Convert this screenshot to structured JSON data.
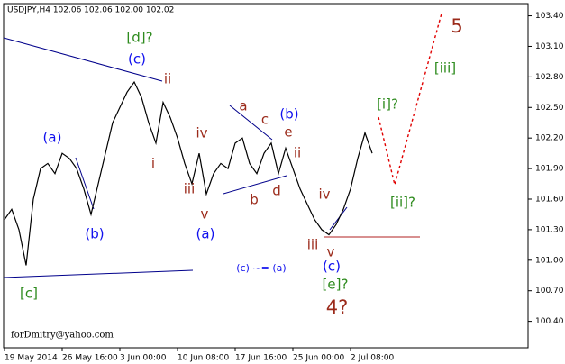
{
  "chart_data": {
    "type": "line",
    "title": "USDJPY,H4  102.06 102.06 102.00 102.02",
    "watermark": "forDmitry@yahoo.com",
    "categories": [
      "19 May 2014",
      null,
      null,
      null,
      null,
      null,
      null,
      null,
      "26 May 16:00",
      null,
      null,
      null,
      null,
      null,
      null,
      null,
      "3 Jun 00:00",
      null,
      null,
      null,
      null,
      null,
      null,
      null,
      "10 Jun 08:00",
      null,
      null,
      null,
      null,
      null,
      null,
      null,
      "17 Jun 16:00",
      null,
      null,
      null,
      null,
      null,
      null,
      null,
      "25 Jun 00:00",
      null,
      null,
      null,
      null,
      null,
      null,
      null,
      "2 Jul 08:00",
      null,
      null,
      null
    ],
    "series": [
      {
        "name": "USDJPY",
        "color": "#000000",
        "values": [
          101.4,
          101.5,
          101.3,
          100.95,
          101.6,
          101.9,
          101.95,
          101.85,
          102.05,
          102.0,
          101.9,
          101.7,
          101.45,
          101.75,
          102.05,
          102.35,
          102.5,
          102.65,
          102.75,
          102.6,
          102.35,
          102.15,
          102.55,
          102.4,
          102.2,
          101.95,
          101.75,
          102.05,
          101.65,
          101.85,
          101.95,
          101.9,
          102.15,
          102.2,
          101.95,
          101.85,
          102.05,
          102.15,
          101.85,
          102.1,
          101.9,
          101.7,
          101.55,
          101.4,
          101.3,
          101.25,
          101.35,
          101.5,
          101.7,
          102.0,
          102.25,
          102.05
        ]
      }
    ],
    "ylim": [
      100.14,
      103.52
    ],
    "yticks": [
      {
        "value": 100.4,
        "label": "100.40"
      },
      {
        "value": 100.7,
        "label": "100.70"
      },
      {
        "value": 101.0,
        "label": "101.00"
      },
      {
        "value": 101.3,
        "label": "101.30"
      },
      {
        "value": 101.6,
        "label": "101.60"
      },
      {
        "value": 101.9,
        "label": "101.90"
      },
      {
        "value": 102.2,
        "label": "102.20"
      },
      {
        "value": 102.5,
        "label": "102.50"
      },
      {
        "value": 102.8,
        "label": "102.80"
      },
      {
        "value": 103.1,
        "label": "103.10"
      },
      {
        "value": 103.4,
        "label": "103.40"
      }
    ],
    "grid": false,
    "annotations": [
      {
        "text": "[d]?",
        "color": "#2e8b1e"
      },
      {
        "text": "(c)",
        "color": "#1010ee"
      },
      {
        "text": "ii",
        "color": "#9b2a1a"
      },
      {
        "text": "i",
        "color": "#9b2a1a"
      },
      {
        "text": "iv",
        "color": "#9b2a1a"
      },
      {
        "text": "iii",
        "color": "#9b2a1a"
      },
      {
        "text": "v",
        "color": "#9b2a1a"
      },
      {
        "text": "(a)",
        "color": "#1010ee"
      },
      {
        "text": "(a)",
        "color": "#1010ee"
      },
      {
        "text": "(b)",
        "color": "#1010ee"
      },
      {
        "text": "[c]",
        "color": "#2e8b1e"
      },
      {
        "text": "a",
        "color": "#9b2a1a"
      },
      {
        "text": "c",
        "color": "#9b2a1a"
      },
      {
        "text": "(b)",
        "color": "#1010ee"
      },
      {
        "text": "e",
        "color": "#9b2a1a"
      },
      {
        "text": "ii",
        "color": "#9b2a1a"
      },
      {
        "text": "b",
        "color": "#9b2a1a"
      },
      {
        "text": "d",
        "color": "#9b2a1a"
      },
      {
        "text": "iii",
        "color": "#9b2a1a"
      },
      {
        "text": "v",
        "color": "#9b2a1a"
      },
      {
        "text": "iv",
        "color": "#9b2a1a"
      },
      {
        "text": "(c)",
        "color": "#1010ee"
      },
      {
        "text": "[e]?",
        "color": "#2e8b1e"
      },
      {
        "text": "4?",
        "color": "#9b2a1a"
      },
      {
        "text": "(c) ~= (a)",
        "color": "#1010ee"
      },
      {
        "text": "[i]?",
        "color": "#2e8b1e"
      },
      {
        "text": "[ii]?",
        "color": "#2e8b1e"
      },
      {
        "text": "[iii]",
        "color": "#2e8b1e"
      },
      {
        "text": "5",
        "color": "#9b2a1a"
      }
    ]
  }
}
